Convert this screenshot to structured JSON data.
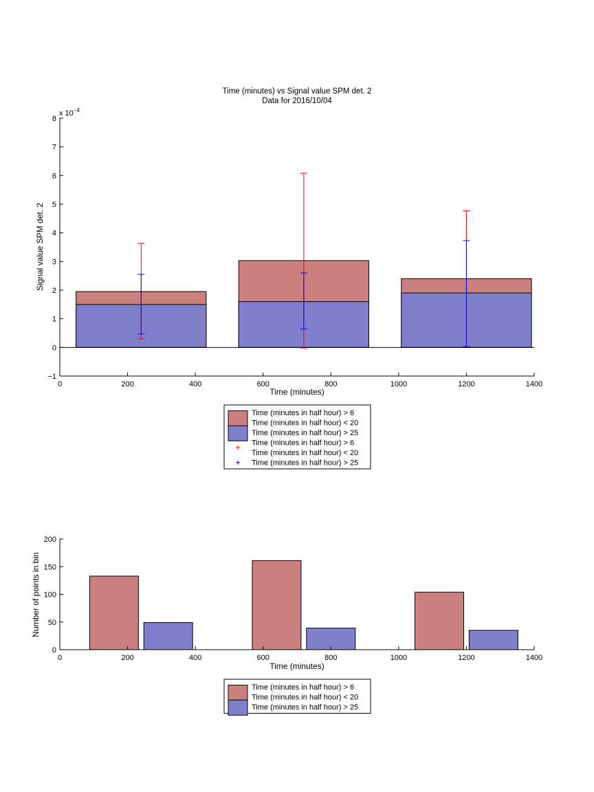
{
  "chart_data": [
    {
      "type": "bar",
      "title": "Time (minutes) vs Signal value SPM det. 2",
      "subtitle": "Data for 2016/10/04",
      "xlabel": "Time (minutes)",
      "ylabel": "Signal value SPM det. 2",
      "exponent_label": "x 10",
      "exponent_power": "−4",
      "xlim": [
        0,
        1400
      ],
      "ylim": [
        -1,
        8
      ],
      "y_multiplier": 0.0001,
      "xticks": [
        0,
        200,
        400,
        600,
        800,
        1000,
        1200,
        1400
      ],
      "yticks": [
        -1,
        0,
        1,
        2,
        3,
        4,
        5,
        6,
        7,
        8
      ],
      "grid": false,
      "legend_position": "below",
      "bins": [
        {
          "x_start": 48,
          "x_end": 432,
          "center": 240
        },
        {
          "x_start": 528,
          "x_end": 912,
          "center": 720
        },
        {
          "x_start": 1008,
          "x_end": 1392,
          "center": 1200
        }
      ],
      "series": [
        {
          "name": "Time (minutes in half hour) > 6\nTime (minutes in half hour) < 20",
          "color": "#cc7f7f",
          "values": [
            1.95,
            3.03,
            2.4
          ],
          "error_low": [
            0.3,
            -0.02,
            0.03
          ],
          "error_high": [
            3.63,
            6.08,
            4.77
          ],
          "error_color": "#ff0000"
        },
        {
          "name": "Time (minutes in half hour) > 25",
          "color": "#7f7fcc",
          "values": [
            1.5,
            1.6,
            1.9
          ],
          "error_low": [
            0.47,
            0.64,
            0.03
          ],
          "error_high": [
            2.55,
            2.6,
            3.73
          ],
          "error_color": "#0000ff"
        }
      ],
      "legend": [
        {
          "kind": "patch",
          "color": "#cc7f7f",
          "lines": [
            "Time (minutes in half hour) > 6",
            "Time (minutes in half hour) < 20"
          ]
        },
        {
          "kind": "patch",
          "color": "#7f7fcc",
          "lines": [
            "Time (minutes in half hour) > 25"
          ]
        },
        {
          "kind": "marker",
          "color": "#ff0000",
          "lines": [
            "Time (minutes in half hour) > 6",
            "Time (minutes in half hour) < 20"
          ]
        },
        {
          "kind": "marker",
          "color": "#0000ff",
          "lines": [
            "Time (minutes in half hour) > 25"
          ]
        }
      ]
    },
    {
      "type": "bar",
      "xlabel": "Time (minutes)",
      "ylabel": "Number of points in bin",
      "xlim": [
        0,
        1400
      ],
      "ylim": [
        0,
        200
      ],
      "xticks": [
        0,
        200,
        400,
        600,
        800,
        1000,
        1200,
        1400
      ],
      "yticks": [
        0,
        50,
        100,
        150,
        200
      ],
      "grid": false,
      "legend_position": "below",
      "series": [
        {
          "name": "Time (minutes in half hour) > 6\nTime (minutes in half hour) < 20",
          "color": "#cc7f7f",
          "bars": [
            {
              "x_start": 88,
              "x_end": 232,
              "value": 133
            },
            {
              "x_start": 568,
              "x_end": 712,
              "value": 161
            },
            {
              "x_start": 1048,
              "x_end": 1192,
              "value": 104
            }
          ]
        },
        {
          "name": "Time (minutes in half hour) > 25",
          "color": "#7f7fcc",
          "bars": [
            {
              "x_start": 248,
              "x_end": 392,
              "value": 49
            },
            {
              "x_start": 728,
              "x_end": 872,
              "value": 39
            },
            {
              "x_start": 1208,
              "x_end": 1352,
              "value": 35
            }
          ]
        }
      ],
      "legend": [
        {
          "kind": "patch",
          "color": "#cc7f7f",
          "lines": [
            "Time (minutes in half hour) > 6",
            "Time (minutes in half hour) < 20"
          ]
        },
        {
          "kind": "patch",
          "color": "#7f7fcc",
          "lines": [
            "Time (minutes in half hour) > 25"
          ]
        }
      ]
    }
  ]
}
